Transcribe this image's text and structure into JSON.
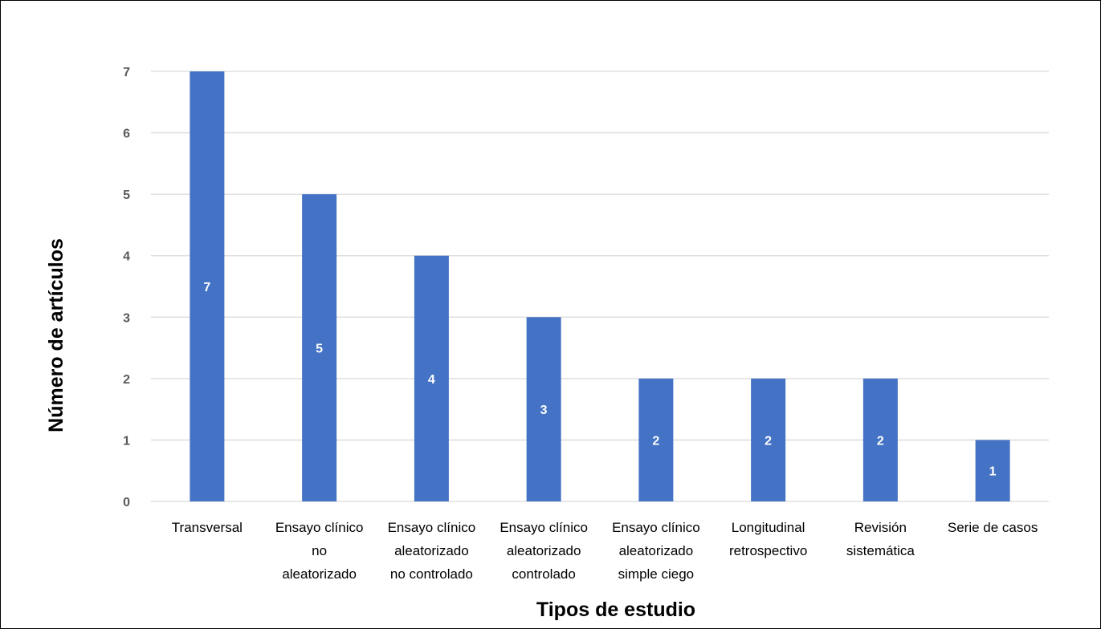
{
  "chart_data": {
    "type": "bar",
    "categories": [
      [
        "Transversal"
      ],
      [
        "Ensayo clínico",
        "no",
        "aleatorizado"
      ],
      [
        "Ensayo clínico",
        "aleatorizado",
        "no controlado"
      ],
      [
        "Ensayo clínico",
        "aleatorizado",
        "controlado"
      ],
      [
        "Ensayo clínico",
        "aleatorizado",
        "simple ciego"
      ],
      [
        "Longitudinal",
        "retrospectivo"
      ],
      [
        "Revisión",
        "sistemática"
      ],
      [
        "Serie de casos"
      ]
    ],
    "values": [
      7,
      5,
      4,
      3,
      2,
      2,
      2,
      1
    ],
    "data_labels": [
      "7",
      "5",
      "4",
      "3",
      "2",
      "2",
      "2",
      "1"
    ],
    "yticks": [
      "0",
      "1",
      "2",
      "3",
      "4",
      "5",
      "6",
      "7"
    ],
    "ylim": [
      0,
      7
    ],
    "xlabel": "Tipos de estudio",
    "ylabel": "Número de artículos",
    "grid": true,
    "legend": "none",
    "colors": {
      "bar": "#4472C4",
      "grid": "#D9D9D9",
      "label": "#FFFFFF"
    }
  }
}
